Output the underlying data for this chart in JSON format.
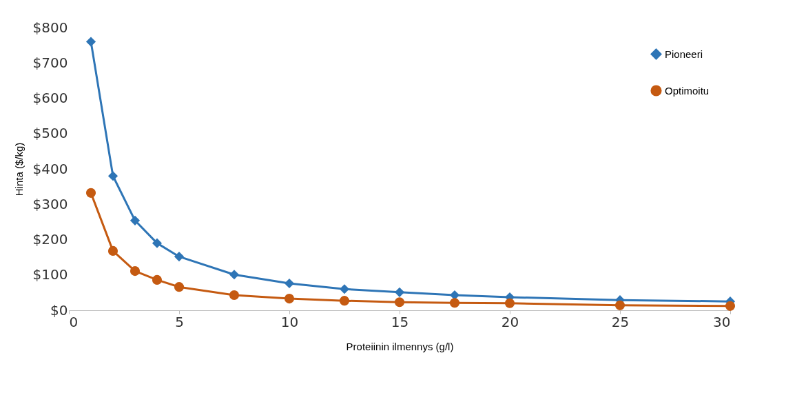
{
  "chart_data": {
    "type": "line",
    "xlabel": "Proteiinin ilmennys (g/l)",
    "ylabel": "Hinta ($/kg)",
    "xlim": [
      0,
      30
    ],
    "xticks": [
      0,
      5,
      10,
      15,
      20,
      25,
      30
    ],
    "ylim": [
      0,
      800
    ],
    "yticks": [
      {
        "value": 0,
        "label": "$0"
      },
      {
        "value": 100,
        "label": "$100"
      },
      {
        "value": 200,
        "label": "$200"
      },
      {
        "value": 300,
        "label": "$300"
      },
      {
        "value": 400,
        "label": "$400"
      },
      {
        "value": 500,
        "label": "$500"
      },
      {
        "value": 600,
        "label": "$600"
      },
      {
        "value": 700,
        "label": "$700"
      },
      {
        "value": 800,
        "label": "$800"
      }
    ],
    "x": [
      1,
      2,
      3,
      4,
      5,
      7.5,
      10,
      12.5,
      15,
      17.5,
      20,
      25,
      30
    ],
    "series": [
      {
        "name": "Pioneeri",
        "color": "#2e75b6",
        "marker": "diamond",
        "values": [
          760,
          380,
          254,
          190,
          152,
          101,
          76,
          60,
          51,
          43,
          37,
          29,
          25
        ]
      },
      {
        "name": "Optimoitu",
        "color": "#c55a11",
        "marker": "circle",
        "values": [
          332,
          168,
          111,
          86,
          66,
          43,
          33,
          27,
          23,
          21,
          20,
          14,
          12
        ]
      }
    ],
    "grid": false,
    "legend": "top right"
  }
}
